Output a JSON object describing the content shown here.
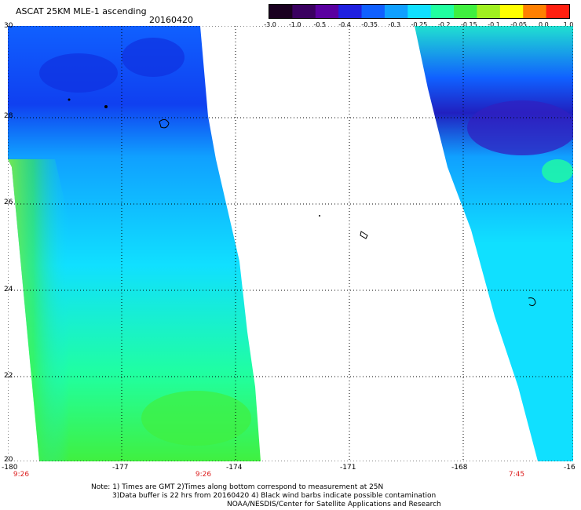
{
  "header": {
    "title": "ASCAT 25KM MLE-1 ascending",
    "date": "20160420"
  },
  "colorbar": {
    "labels": [
      "-3.0",
      "-1.0",
      "-0.5",
      "-0.4",
      "-0.35",
      "-0.3",
      "-0.25",
      "-0.2",
      "-0.15",
      "-0.1",
      "-0.05",
      "0.0",
      "1.0"
    ],
    "colors": [
      "#1a0020",
      "#3a0060",
      "#5a00a0",
      "#2020e0",
      "#1060ff",
      "#10a0ff",
      "#10e0ff",
      "#20ffa0",
      "#40f040",
      "#a0f020",
      "#ffff00",
      "#ff8000",
      "#ff2010"
    ]
  },
  "map": {
    "lat_labels": [
      "30",
      "28",
      "26",
      "24",
      "22",
      "20"
    ],
    "lon_labels": [
      "-180",
      "-177",
      "-174",
      "-171",
      "-168",
      "-16"
    ],
    "time_labels": [
      "9:26",
      "9:26",
      "7:45"
    ]
  },
  "notes": {
    "line1": "Note: 1) Times are GMT 2)Times along bottom correspond to measurement at 25N",
    "line2": "3)Data buffer is 22 hrs from 20160420 4) Black wind barbs indicate possible contamination",
    "line3": "NOAA/NESDIS/Center for Satellite Applications and Research"
  }
}
